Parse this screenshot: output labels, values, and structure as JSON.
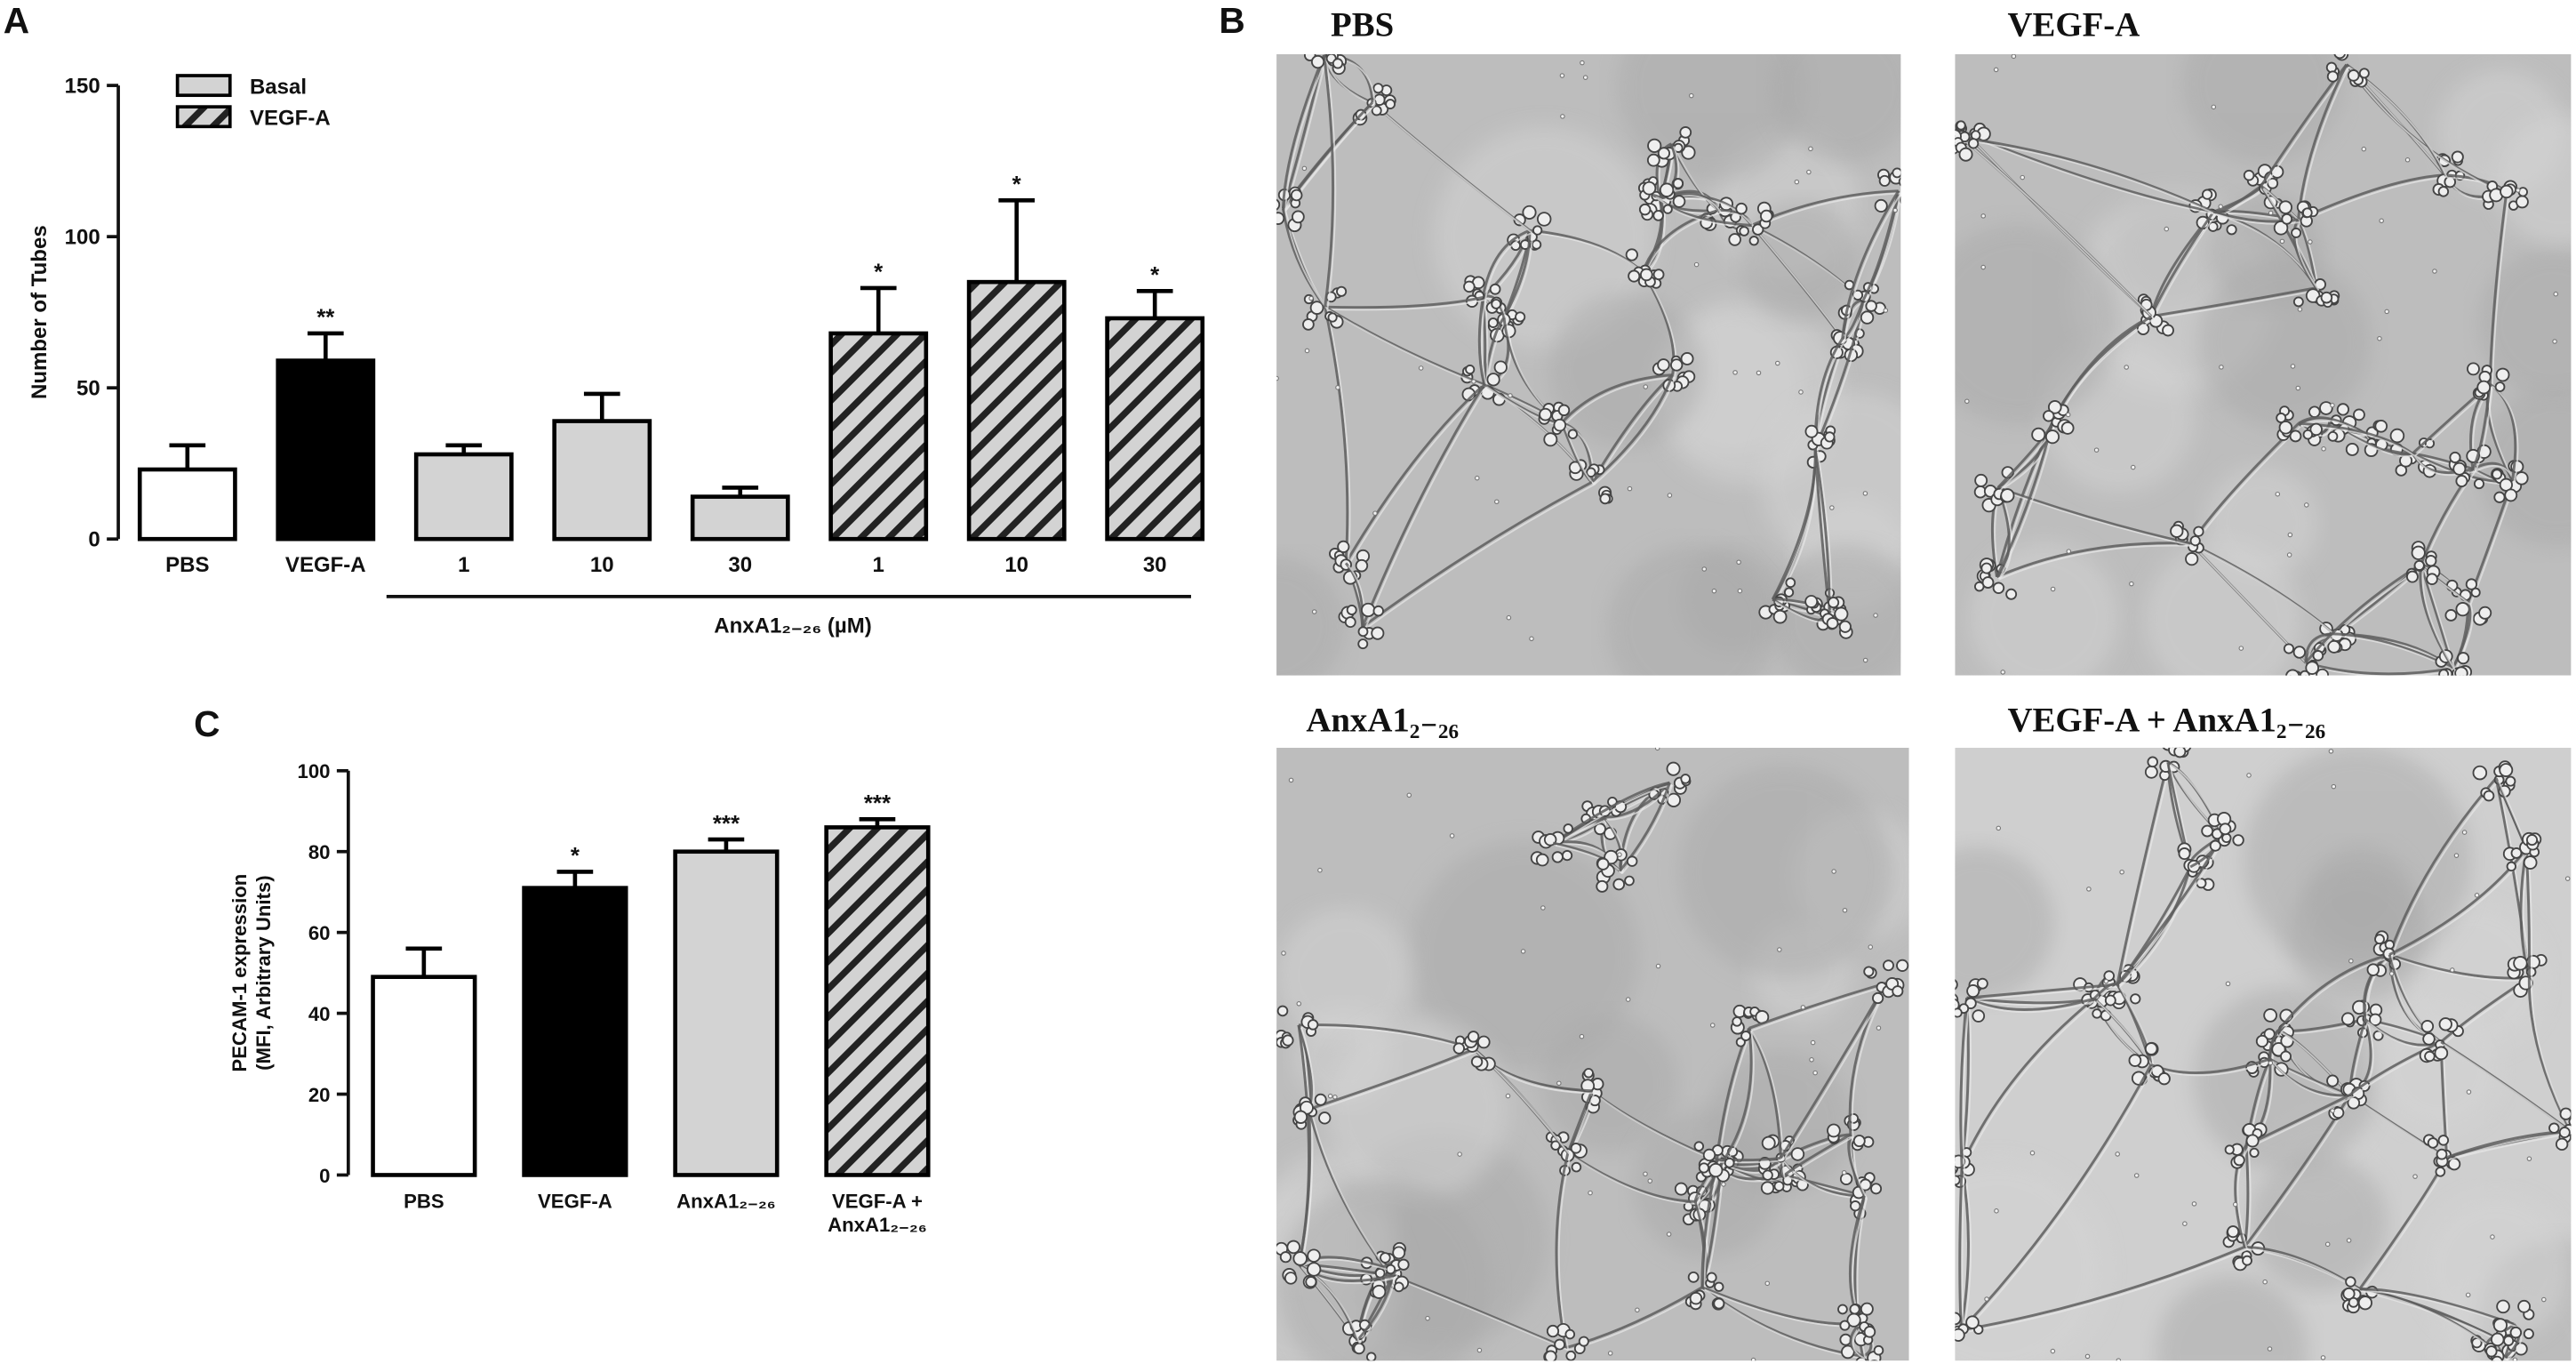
{
  "chart_data": [
    {
      "type": "bar",
      "label": "A",
      "ylabel": "Number of Tubes",
      "categories": [
        "PBS",
        "VEGF-A",
        "1",
        "10",
        "30",
        "1",
        "10",
        "30"
      ],
      "values": [
        23,
        59,
        28,
        39,
        14,
        68,
        85,
        73
      ],
      "errors": [
        8,
        9,
        3,
        9,
        3,
        15,
        27,
        9
      ],
      "fills": [
        "#ffffff",
        "#000000",
        "#d3d3d3",
        "#d3d3d3",
        "#d3d3d3",
        "hatch",
        "hatch",
        "hatch"
      ],
      "significance": [
        null,
        "**",
        null,
        null,
        null,
        "*",
        "*",
        "*"
      ],
      "group_label": "AnxA1₂₋₂₆ (µM)",
      "ylim": [
        0,
        150
      ],
      "yticks": [
        0,
        50,
        100,
        150
      ],
      "legend": {
        "corner": "upper-left",
        "items": [
          {
            "name": "Basal",
            "fill": "#d3d3d3"
          },
          {
            "name": "VEGF-A",
            "fill": "hatch"
          }
        ]
      }
    },
    {
      "type": "bar",
      "label": "C",
      "ylabel": "PECAM-1 expression\n(MFI, Arbitrary Units)",
      "categories": [
        "PBS",
        "VEGF-A",
        "AnxA1₂₋₂₆",
        "VEGF-A +\nAnxA1₂₋₂₆"
      ],
      "values": [
        49,
        71,
        80,
        86
      ],
      "errors": [
        7,
        4,
        3,
        2
      ],
      "fills": [
        "#ffffff",
        "#000000",
        "#d3d3d3",
        "hatch"
      ],
      "significance": [
        null,
        "*",
        "***",
        "***"
      ],
      "ylim": [
        0,
        100
      ],
      "yticks": [
        0,
        20,
        40,
        60,
        80,
        100
      ]
    }
  ],
  "micrographs": {
    "label": "B",
    "images": [
      {
        "title": "PBS"
      },
      {
        "title": "VEGF-A"
      },
      {
        "title": "AnxA1₂₋₂₆"
      },
      {
        "title": "VEGF-A + AnxA1₂₋₂₆"
      }
    ]
  }
}
